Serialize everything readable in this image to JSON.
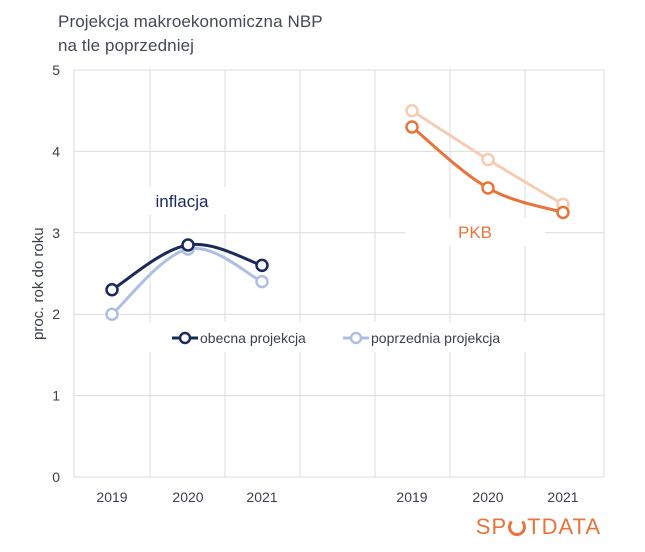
{
  "title_line1": "Projekcja makroekonomiczna NBP",
  "title_line2": "na tle poprzedniej",
  "logo": {
    "before": "SP",
    "after": "TDATA",
    "color": "#e8743b"
  },
  "chart_data": {
    "type": "line",
    "ylabel": "proc. rok do roku",
    "ylim": [
      0,
      5
    ],
    "yticks": [
      "0",
      "1",
      "2",
      "3",
      "4",
      "5"
    ],
    "grid": true,
    "legend_placement": "center-right",
    "groups": [
      {
        "name": "inflacja",
        "label_color": "#1b2a5c",
        "categories": [
          "2019",
          "2020",
          "2021"
        ],
        "series": [
          {
            "name": "obecna projekcja",
            "color": "#1b2a5c",
            "values": [
              2.3,
              2.85,
              2.6
            ]
          },
          {
            "name": "poprzednia projekcja",
            "color": "#aebfe2",
            "values": [
              2.0,
              2.8,
              2.4
            ]
          }
        ]
      },
      {
        "name": "PKB",
        "label_color": "#e8743b",
        "categories": [
          "2019",
          "2020",
          "2021"
        ],
        "series": [
          {
            "name": "obecna projekcja",
            "color": "#e8743b",
            "values": [
              4.3,
              3.55,
              3.25
            ]
          },
          {
            "name": "poprzednia projekcja",
            "color": "#f6cdb4",
            "values": [
              4.5,
              3.9,
              3.35
            ]
          }
        ]
      }
    ],
    "legend": [
      {
        "label": "obecna projekcja",
        "color": "#1b2a5c"
      },
      {
        "label": "poprzednia projekcja",
        "color": "#aebfe2"
      }
    ]
  }
}
